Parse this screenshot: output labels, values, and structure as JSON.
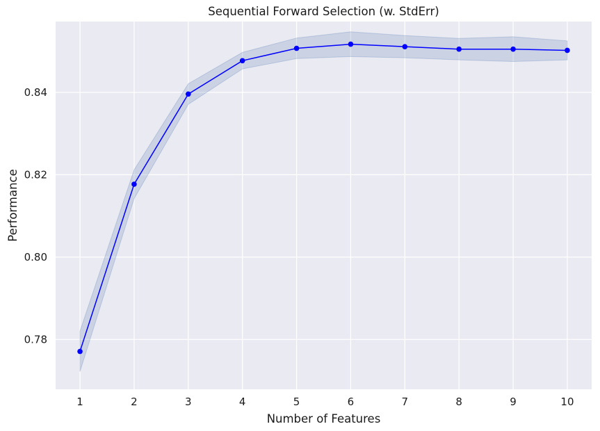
{
  "chart_data": {
    "type": "line",
    "title": "Sequential Forward Selection (w. StdErr)",
    "xlabel": "Number of Features",
    "ylabel": "Performance",
    "x": [
      1,
      2,
      3,
      4,
      5,
      6,
      7,
      8,
      9,
      10
    ],
    "series": [
      {
        "values": [
          0.7771,
          0.8177,
          0.8396,
          0.8477,
          0.8507,
          0.8517,
          0.8511,
          0.8505,
          0.8505,
          0.8502
        ],
        "error": [
          0.0049,
          0.0035,
          0.0025,
          0.002,
          0.0025,
          0.003,
          0.0027,
          0.0026,
          0.003,
          0.0023
        ],
        "line_color": "#0000ff",
        "band_color": "#4c72b0"
      }
    ],
    "xlim": [
      0.55,
      10.45
    ],
    "ylim": [
      0.7679,
      0.8572
    ],
    "xticks": [
      1,
      2,
      3,
      4,
      5,
      6,
      7,
      8,
      9,
      10
    ],
    "yticks": [
      0.78,
      0.8,
      0.82,
      0.84
    ],
    "ytick_labels": [
      "0.78",
      "0.80",
      "0.82",
      "0.84"
    ],
    "grid": true,
    "background_color": "#eaeaf2",
    "grid_color": "#ffffff"
  }
}
